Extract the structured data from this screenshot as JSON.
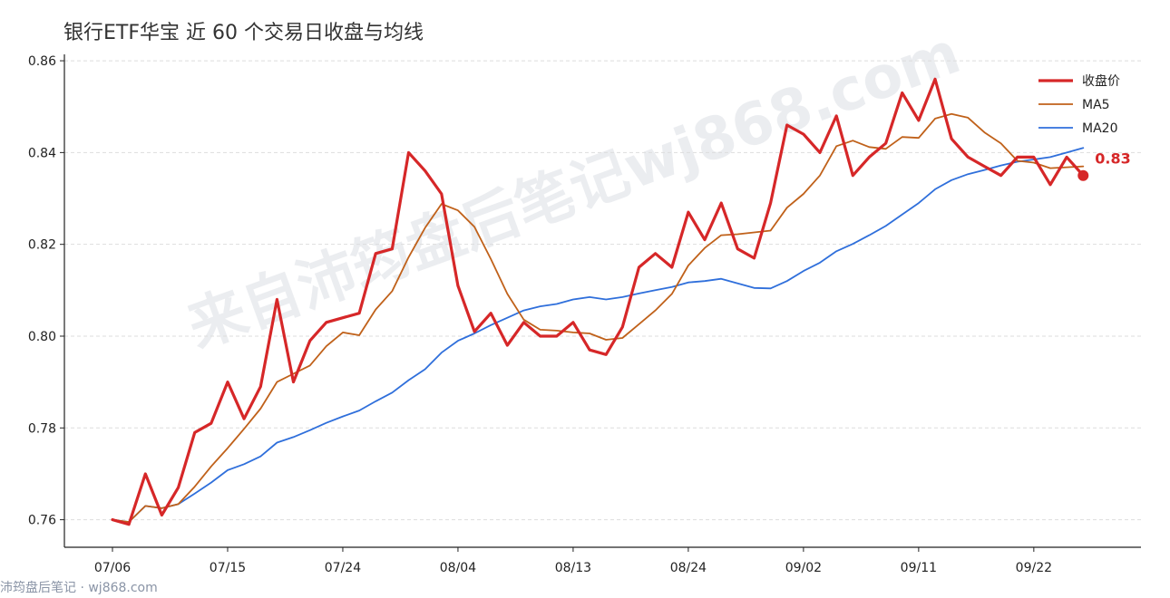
{
  "title": "银行ETF华宝 近 60 个交易日收盘与均线",
  "watermark": "来自沛筠盘后笔记wj868.com",
  "footer": "沛筠盘后笔记 · wj868.com",
  "colors": {
    "close": "#d62728",
    "ma5": "#c0611a",
    "ma20": "#2f6fdb",
    "grid": "#dddddd",
    "axis": "#222222"
  },
  "chart_data": {
    "type": "line",
    "title": "银行ETF华宝 近 60 个交易日收盘与均线",
    "xlabel": "",
    "ylabel": "",
    "ylim": [
      0.754,
      0.861
    ],
    "yticks": [
      0.76,
      0.78,
      0.8,
      0.82,
      0.84,
      0.86
    ],
    "ytick_labels": [
      "0.76",
      "0.78",
      "0.80",
      "0.82",
      "0.84",
      "0.86"
    ],
    "xticks": [
      {
        "index": 0,
        "label": "07/06"
      },
      {
        "index": 7,
        "label": "07/15"
      },
      {
        "index": 14,
        "label": "07/24"
      },
      {
        "index": 21,
        "label": "08/04"
      },
      {
        "index": 28,
        "label": "08/13"
      },
      {
        "index": 35,
        "label": "08/24"
      },
      {
        "index": 42,
        "label": "09/02"
      },
      {
        "index": 49,
        "label": "09/11"
      },
      {
        "index": 56,
        "label": "09/22"
      }
    ],
    "grid": "horizontal",
    "legend_position": "top-right",
    "series": [
      {
        "name": "收盘价",
        "values": [
          0.76,
          0.759,
          0.77,
          0.761,
          0.767,
          0.779,
          0.781,
          0.79,
          0.782,
          0.789,
          0.808,
          0.79,
          0.799,
          0.803,
          0.804,
          0.805,
          0.818,
          0.819,
          0.84,
          0.836,
          0.831,
          0.811,
          0.801,
          0.805,
          0.798,
          0.803,
          0.8,
          0.8,
          0.803,
          0.797,
          0.796,
          0.802,
          0.815,
          0.818,
          0.815,
          0.827,
          0.821,
          0.829,
          0.819,
          0.817,
          0.829,
          0.846,
          0.844,
          0.84,
          0.848,
          0.835,
          0.839,
          0.842,
          0.853,
          0.847,
          0.856,
          0.843,
          0.839,
          0.837,
          0.835,
          0.839,
          0.839,
          0.833,
          0.839,
          0.835
        ]
      },
      {
        "name": "MA5",
        "values": [
          0.76,
          0.7595,
          0.763,
          0.7625,
          0.7634,
          0.7672,
          0.7716,
          0.7756,
          0.7798,
          0.7842,
          0.79,
          0.7918,
          0.7936,
          0.7978,
          0.8008,
          0.8002,
          0.8058,
          0.8098,
          0.8172,
          0.8236,
          0.8288,
          0.8274,
          0.8238,
          0.8168,
          0.8092,
          0.8036,
          0.8014,
          0.8012,
          0.8008,
          0.8006,
          0.7992,
          0.7996,
          0.8026,
          0.8056,
          0.8092,
          0.8154,
          0.8192,
          0.822,
          0.8222,
          0.8226,
          0.823,
          0.828,
          0.831,
          0.835,
          0.8414,
          0.8426,
          0.8412,
          0.8408,
          0.8434,
          0.8432,
          0.8474,
          0.8484,
          0.8476,
          0.8444,
          0.842,
          0.8382,
          0.8378,
          0.8366,
          0.8368,
          0.837
        ]
      },
      {
        "name": "MA20",
        "values": [
          0.76,
          0.7595,
          0.763,
          0.7625,
          0.7634,
          0.7657,
          0.7681,
          0.7708,
          0.7721,
          0.7738,
          0.7768,
          0.778,
          0.7795,
          0.7811,
          0.7825,
          0.7838,
          0.7858,
          0.7877,
          0.7904,
          0.7928,
          0.7964,
          0.799,
          0.8006,
          0.8024,
          0.804,
          0.8056,
          0.8065,
          0.807,
          0.808,
          0.8085,
          0.808,
          0.8085,
          0.8093,
          0.81,
          0.8107,
          0.8117,
          0.812,
          0.8125,
          0.8115,
          0.8105,
          0.8104,
          0.812,
          0.8142,
          0.816,
          0.8185,
          0.8201,
          0.822,
          0.824,
          0.8265,
          0.829,
          0.832,
          0.834,
          0.8353,
          0.8362,
          0.8372,
          0.838,
          0.8385,
          0.839,
          0.84,
          0.841
        ]
      }
    ],
    "end_marker": {
      "series": "收盘价",
      "label": "0.83"
    }
  }
}
